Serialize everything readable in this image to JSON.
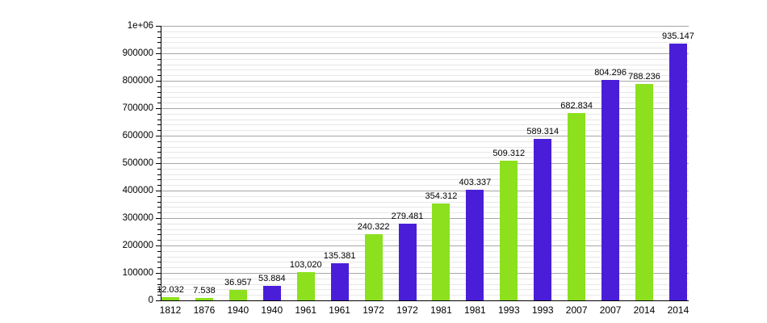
{
  "chart_data": {
    "type": "bar",
    "title": "",
    "xlabel": "",
    "ylabel": "",
    "categories": [
      "1812",
      "1876",
      "1940",
      "1940",
      "1961",
      "1961",
      "1972",
      "1972",
      "1981",
      "1981",
      "1993",
      "1993",
      "2007",
      "2007",
      "2014",
      "2014"
    ],
    "values": [
      12032,
      7538,
      36957,
      53884,
      103020,
      135381,
      240322,
      279481,
      354312,
      403337,
      509312,
      589314,
      682834,
      804296,
      788236,
      935147
    ],
    "value_labels": [
      "12.032",
      "7.538",
      "36.957",
      "53.884",
      "103,020",
      "135.381",
      "240.322",
      "279.481",
      "354.312",
      "403.337",
      "509.312",
      "589.314",
      "682.834",
      "804.296",
      "788.236",
      "935.147"
    ],
    "bar_color_keys": [
      "green",
      "green",
      "green",
      "blue",
      "green",
      "blue",
      "green",
      "blue",
      "green",
      "blue",
      "green",
      "blue",
      "green",
      "blue",
      "green",
      "blue"
    ],
    "ylim": [
      0,
      1000000
    ],
    "y_major_step": 100000,
    "y_minor_step": 20000,
    "y_tick_labels": [
      "0",
      "100000",
      "200000",
      "300000",
      "400000",
      "500000",
      "600000",
      "700000",
      "800000",
      "900000",
      "1e+06"
    ],
    "grid": true,
    "legend_position": "none",
    "colors": {
      "bar_green": "#8CE01E",
      "bar_blue": "#4A1ED9",
      "grid_major": "#a6a6a6",
      "grid_minor": "#e7e7e7",
      "axis": "#000000",
      "text": "#000000",
      "background": "#ffffff"
    }
  }
}
